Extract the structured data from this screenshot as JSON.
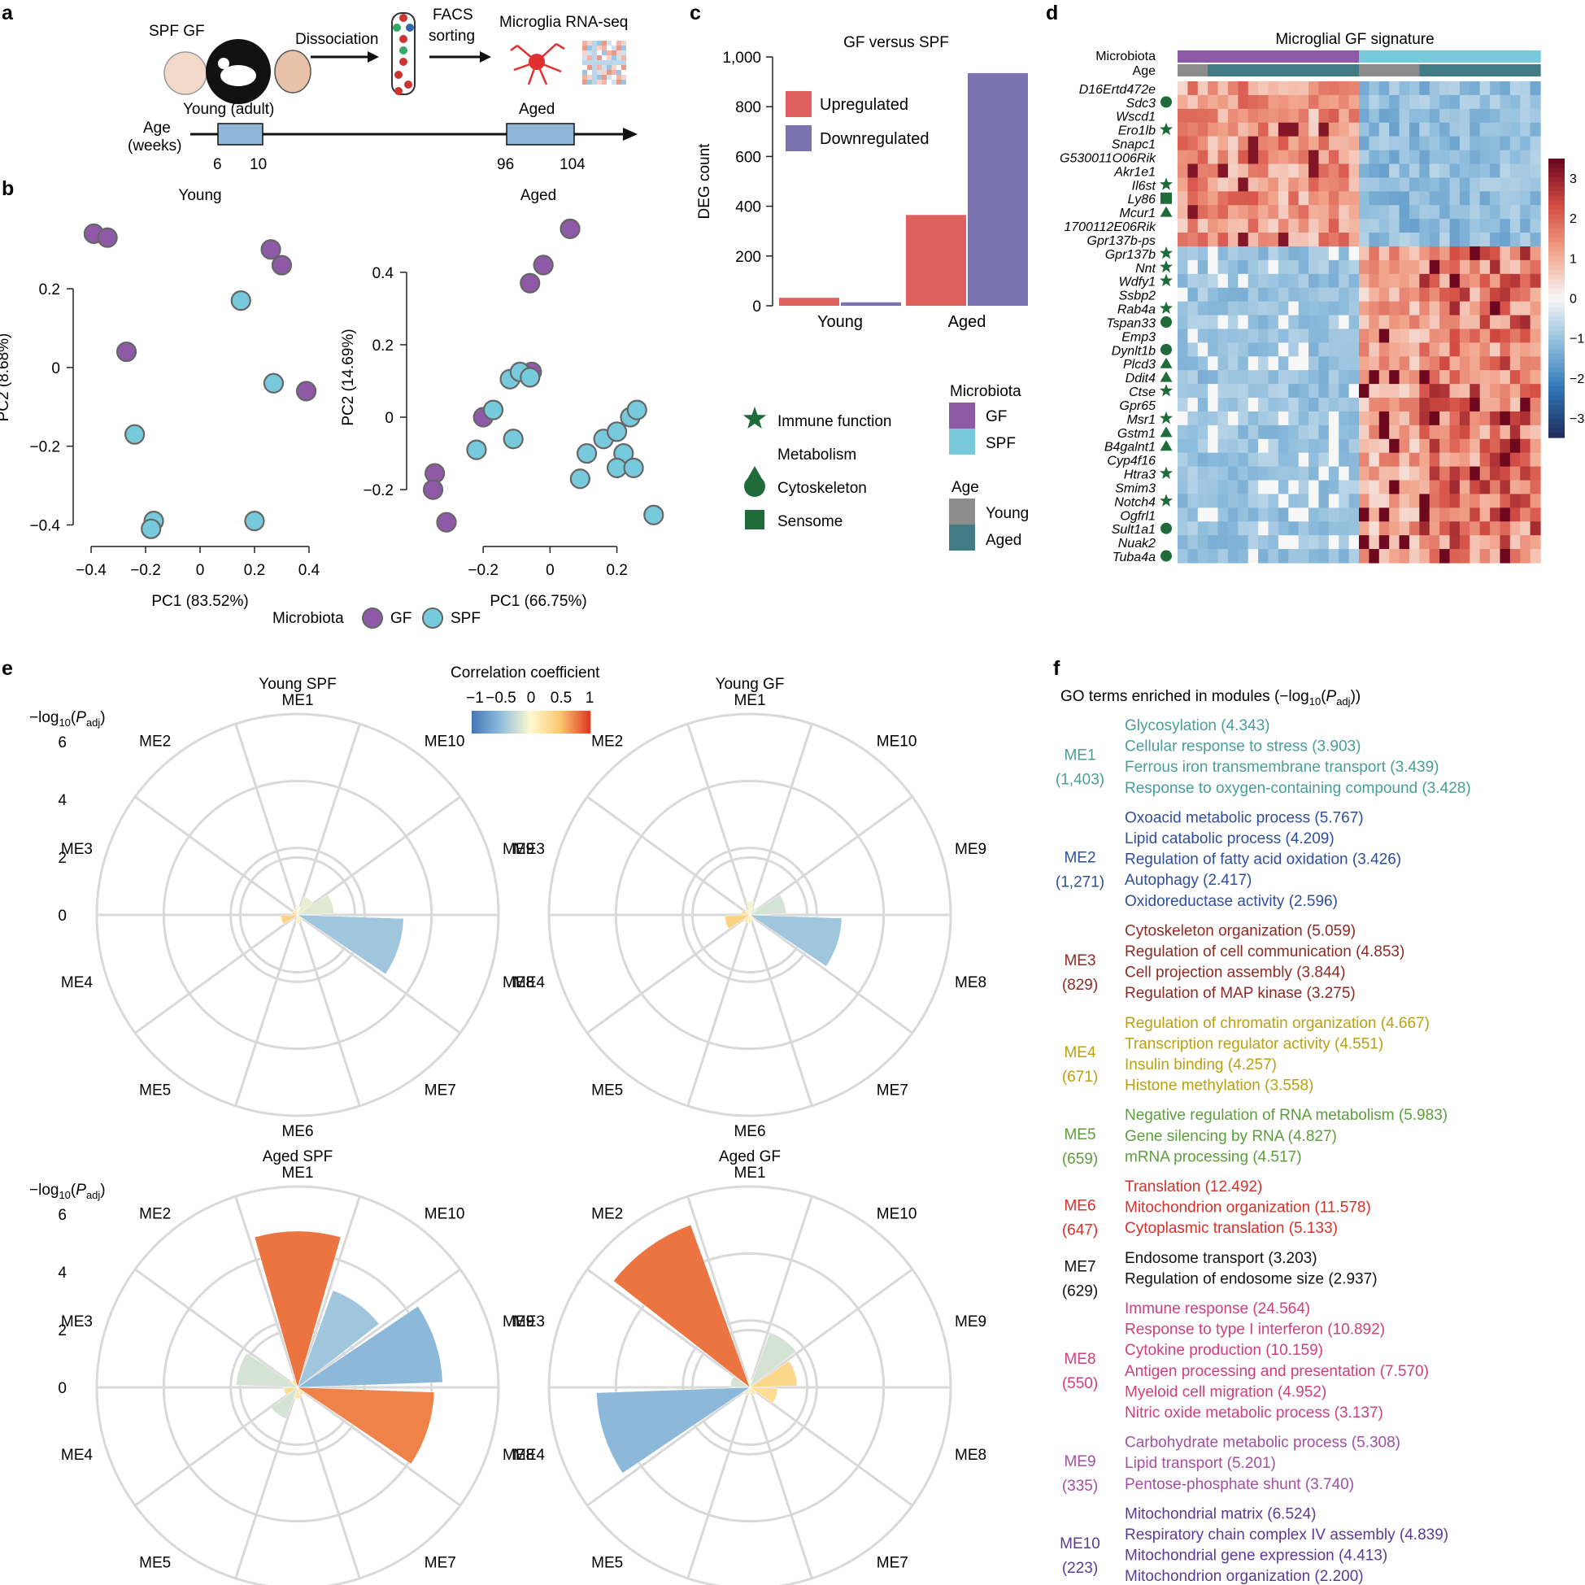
{
  "panel_letters": [
    "a",
    "b",
    "c",
    "d",
    "e",
    "f"
  ],
  "panel_a": {
    "strains": "SPF GF",
    "step1": "Dissociation",
    "step2_line1": "FACS",
    "step2_line2": "sorting",
    "step3": "Microglia RNA-seq",
    "young_label": "Young (adult)",
    "aged_label": "Aged",
    "age_axis_line1": "Age",
    "age_axis_line2": "(weeks)",
    "ticks": [
      "6",
      "10",
      "96",
      "104"
    ],
    "colors": {
      "bar": "#8fb5d8",
      "mouse": "#111111",
      "cell": "#e03030"
    }
  },
  "legend_b": {
    "title": "Microbiota",
    "gf": "GF",
    "spf": "SPF"
  },
  "legend_c": {
    "categories_title": "",
    "immune": "Immune function",
    "metabolism": "Metabolism",
    "cytoskeleton": "Cytoskeleton",
    "sensome": "Sensome",
    "microbiota_title": "Microbiota",
    "gf": "GF",
    "spf": "SPF",
    "age_title": "Age",
    "young": "Young",
    "aged": "Aged"
  },
  "colors": {
    "gf": "#8e5aa8",
    "spf": "#77cadc",
    "young": "#8c8c8c",
    "aged": "#427d87",
    "up": "#e06060",
    "down": "#7b72b0",
    "category_marker": "#1f6b3a",
    "up_petal": "#ec8150",
    "down_petal": "#8dbcdd"
  },
  "chart_data": [
    {
      "id": "b_young",
      "type": "scatter",
      "title": "Young",
      "xlabel": "PC1 (83.52%)",
      "ylabel": "PC2 (8.68%)",
      "xlim": [
        -0.43,
        0.43
      ],
      "ylim": [
        -0.43,
        0.38
      ],
      "xticks": [
        -0.4,
        -0.2,
        0,
        0.2,
        0.4
      ],
      "xtick_labels": [
        "−0.4",
        "−0.2",
        "0",
        "0.2",
        "0.4"
      ],
      "yticks": [
        -0.4,
        -0.2,
        0,
        0.2
      ],
      "ytick_labels": [
        "−0.4",
        "−0.2",
        "0",
        "0.2"
      ],
      "series": [
        {
          "name": "GF",
          "points": [
            [
              -0.39,
              0.34
            ],
            [
              -0.34,
              0.33
            ],
            [
              -0.27,
              0.04
            ],
            [
              0.26,
              0.3
            ],
            [
              0.3,
              0.26
            ],
            [
              0.39,
              -0.06
            ]
          ]
        },
        {
          "name": "SPF",
          "points": [
            [
              0.15,
              0.17
            ],
            [
              -0.24,
              -0.17
            ],
            [
              0.27,
              -0.04
            ],
            [
              -0.17,
              -0.39
            ],
            [
              -0.18,
              -0.41
            ],
            [
              0.2,
              -0.39
            ]
          ]
        }
      ]
    },
    {
      "id": "b_aged",
      "type": "scatter",
      "title": "Aged",
      "xlabel": "PC1 (66.75%)",
      "ylabel": "PC2 (14.69%)",
      "xlim": [
        -0.4,
        0.33
      ],
      "ylim": [
        -0.33,
        0.55
      ],
      "xticks": [
        -0.2,
        0,
        0.2
      ],
      "xtick_labels": [
        "−0.2",
        "0",
        "0.2"
      ],
      "yticks": [
        -0.2,
        0,
        0.2,
        0.4
      ],
      "ytick_labels": [
        "−0.2",
        "0",
        "0.2",
        "0.4"
      ],
      "series": [
        {
          "name": "GF",
          "points": [
            [
              0.06,
              0.52
            ],
            [
              -0.02,
              0.42
            ],
            [
              -0.06,
              0.37
            ],
            [
              -0.055,
              0.125
            ],
            [
              -0.2,
              0.0
            ],
            [
              -0.345,
              -0.155
            ],
            [
              -0.35,
              -0.2
            ],
            [
              -0.31,
              -0.29
            ]
          ]
        },
        {
          "name": "SPF",
          "points": [
            [
              -0.12,
              0.105
            ],
            [
              -0.09,
              0.125
            ],
            [
              -0.06,
              0.11
            ],
            [
              -0.17,
              0.02
            ],
            [
              -0.22,
              -0.09
            ],
            [
              -0.11,
              -0.06
            ],
            [
              0.11,
              -0.1
            ],
            [
              0.09,
              -0.17
            ],
            [
              0.16,
              -0.06
            ],
            [
              0.2,
              -0.04
            ],
            [
              0.24,
              0.0
            ],
            [
              0.26,
              0.02
            ],
            [
              0.22,
              -0.1
            ],
            [
              0.2,
              -0.14
            ],
            [
              0.25,
              -0.14
            ],
            [
              0.31,
              -0.27
            ]
          ]
        }
      ]
    },
    {
      "id": "c",
      "type": "bar",
      "title": "GF versus SPF",
      "categories": [
        "Young",
        "Aged"
      ],
      "ylabel": "DEG count",
      "ylim": [
        0,
        1000
      ],
      "yticks": [
        0,
        200,
        400,
        600,
        800,
        1000
      ],
      "ytick_labels": [
        "0",
        "200",
        "400",
        "600",
        "800",
        "1,000"
      ],
      "series": [
        {
          "name": "Upregulated",
          "values": [
            32,
            365
          ]
        },
        {
          "name": "Downregulated",
          "values": [
            14,
            935
          ]
        }
      ]
    },
    {
      "id": "d",
      "type": "heatmap",
      "title": "Microglial GF signature",
      "annotation_rows": [
        "Microbiota",
        "Age"
      ],
      "column_microbiota": [
        "GF",
        "GF",
        "GF",
        "GF",
        "GF",
        "GF",
        "GF",
        "GF",
        "GF",
        "GF",
        "GF",
        "GF",
        "GF",
        "GF",
        "GF",
        "GF",
        "GF",
        "GF",
        "SPF",
        "SPF",
        "SPF",
        "SPF",
        "SPF",
        "SPF",
        "SPF",
        "SPF",
        "SPF",
        "SPF",
        "SPF",
        "SPF",
        "SPF",
        "SPF",
        "SPF",
        "SPF",
        "SPF",
        "SPF"
      ],
      "column_age": [
        "Young",
        "Young",
        "Young",
        "Aged",
        "Aged",
        "Aged",
        "Aged",
        "Aged",
        "Aged",
        "Aged",
        "Aged",
        "Aged",
        "Aged",
        "Aged",
        "Aged",
        "Aged",
        "Aged",
        "Aged",
        "Young",
        "Young",
        "Young",
        "Young",
        "Young",
        "Young",
        "Aged",
        "Aged",
        "Aged",
        "Aged",
        "Aged",
        "Aged",
        "Aged",
        "Aged",
        "Aged",
        "Aged",
        "Aged",
        "Aged"
      ],
      "genes": [
        "D16Ertd472e",
        "Sdc3",
        "Wscd1",
        "Ero1lb",
        "Snapc1",
        "G530011O06Rik",
        "Akr1e1",
        "Il6st",
        "Ly86",
        "Mcur1",
        "1700112E06Rik",
        "Gpr137b-ps",
        "Gpr137b",
        "Nnt",
        "Wdfy1",
        "Ssbp2",
        "Rab4a",
        "Tspan33",
        "Emp3",
        "Dynlt1b",
        "Plcd3",
        "Ddit4",
        "Ctse",
        "Gpr65",
        "Msr1",
        "Gstm1",
        "B4galnt1",
        "Cyp4f16",
        "Htra3",
        "Smim3",
        "Notch4",
        "Ogfrl1",
        "Sult1a1",
        "Nuak2",
        "Tuba4a"
      ],
      "gene_markers": [
        "",
        "circle",
        "",
        "star",
        "",
        "",
        "",
        "star",
        "square",
        "triangle",
        "",
        "",
        "star",
        "star",
        "star",
        "",
        "star",
        "circle",
        "",
        "circle",
        "triangle",
        "triangle",
        "star",
        "",
        "star",
        "triangle",
        "triangle",
        "",
        "star",
        "",
        "star",
        "",
        "circle",
        "",
        "circle"
      ],
      "colorbar_ticks": [
        "3",
        "2",
        "1",
        "0",
        "−1",
        "−2",
        "−3"
      ],
      "colorbar_range": [
        -3,
        3
      ],
      "values_description": "z-score; values estimated per gene from cell shading"
    },
    {
      "id": "e",
      "type": "rose",
      "modules": [
        "ME1",
        "ME10",
        "ME9",
        "ME8",
        "ME7",
        "ME6",
        "ME5",
        "ME4",
        "ME3",
        "ME2"
      ],
      "rlabel": "−log10(Padj)",
      "rticks": [
        "0",
        "2",
        "4",
        "6"
      ],
      "rmax": 7.2,
      "colorbar_title": "Correlation coefficient",
      "colorbar_ticks": [
        "−1",
        "−0.5",
        "0",
        "0.5",
        "1"
      ],
      "panels": [
        {
          "title": "Young SPF",
          "values": [
            0.3,
            0.7,
            1.3,
            3.8,
            0.2,
            0.3,
            0.1,
            0.6,
            0.2,
            0.2
          ],
          "corr": [
            0.0,
            -0.1,
            -0.15,
            -0.45,
            0.1,
            0.1,
            0.15,
            0.4,
            0.35,
            0.2
          ]
        },
        {
          "title": "Young GF",
          "values": [
            0.5,
            0.3,
            1.3,
            3.3,
            0.2,
            0.3,
            0.3,
            0.9,
            0.3,
            0.2
          ],
          "corr": [
            -0.05,
            -0.1,
            -0.2,
            -0.45,
            0.1,
            0.1,
            0.15,
            0.4,
            0.3,
            0.1
          ]
        },
        {
          "title": "Aged SPF",
          "values": [
            5.6,
            3.7,
            5.2,
            4.9,
            0.3,
            0.4,
            1.2,
            0.5,
            2.2,
            0.3
          ],
          "corr": [
            0.8,
            -0.45,
            -0.55,
            0.75,
            0.2,
            0.2,
            -0.2,
            0.3,
            -0.2,
            0.2
          ]
        },
        {
          "title": "Aged GF",
          "values": [
            0.3,
            2.1,
            1.7,
            1.0,
            0.3,
            0.2,
            0.3,
            5.5,
            0.7,
            6.2
          ],
          "corr": [
            0.0,
            -0.2,
            0.35,
            0.3,
            0.2,
            0.2,
            -0.1,
            -0.55,
            -0.2,
            0.8
          ]
        }
      ]
    }
  ],
  "panel_f": {
    "title": "GO terms enriched in modules (−log10(Padj))",
    "modules": [
      {
        "name": "ME1",
        "count": "(1,403)",
        "color": "#4a9e97",
        "terms": [
          "Glycosylation (4.343)",
          "Cellular response to stress (3.903)",
          "Ferrous iron transmembrane transport (3.439)",
          "Response to oxygen-containing compound (3.428)"
        ]
      },
      {
        "name": "ME2",
        "count": "(1,271)",
        "color": "#2f4e9e",
        "terms": [
          "Oxoacid metabolic process (5.767)",
          "Lipid catabolic process (4.209)",
          "Regulation of fatty acid oxidation (3.426)",
          "Autophagy (2.417)",
          "Oxidoreductase activity (2.596)"
        ]
      },
      {
        "name": "ME3",
        "count": "(829)",
        "color": "#8e2a24",
        "terms": [
          "Cytoskeleton organization (5.059)",
          "Regulation of cell communication (4.853)",
          "Cell projection assembly (3.844)",
          "Regulation of MAP kinase (3.275)"
        ]
      },
      {
        "name": "ME4",
        "count": "(671)",
        "color": "#b9a10f",
        "terms": [
          "Regulation of chromatin organization (4.667)",
          "Transcription regulator activity (4.551)",
          "Insulin binding (4.257)",
          "Histone methylation (3.558)"
        ]
      },
      {
        "name": "ME5",
        "count": "(659)",
        "color": "#5c9e3c",
        "terms": [
          "Negative regulation of RNA metabolism (5.983)",
          "Gene silencing by RNA (4.827)",
          "mRNA processing (4.517)"
        ]
      },
      {
        "name": "ME6",
        "count": "(647)",
        "color": "#d8312c",
        "terms": [
          "Translation (12.492)",
          "Mitochondrion organization (11.578)",
          "Cytoplasmic translation (5.133)"
        ]
      },
      {
        "name": "ME7",
        "count": "(629)",
        "color": "#111111",
        "terms": [
          "Endosome transport (3.203)",
          "Regulation of endosome size (2.937)"
        ]
      },
      {
        "name": "ME8",
        "count": "(550)",
        "color": "#cf3f7c",
        "terms": [
          "Immune response (24.564)",
          "Response to type I interferon (10.892)",
          "Cytokine production (10.159)",
          "Antigen processing and presentation (7.570)",
          "Myeloid cell migration (4.952)",
          "Nitric oxide metabolic process (3.137)"
        ]
      },
      {
        "name": "ME9",
        "count": "(335)",
        "color": "#a44ea4",
        "terms": [
          "Carbohydrate metabolic process (5.308)",
          "Lipid transport (5.201)",
          "Pentose-phosphate shunt (3.740)"
        ]
      },
      {
        "name": "ME10",
        "count": "(223)",
        "color": "#5c3a96",
        "terms": [
          "Mitochondrial matrix (6.524)",
          "Respiratory chain complex IV assembly (4.839)",
          "Mitochondrial gene expression (4.413)",
          "Mitochondrion organization (2.200)"
        ]
      }
    ]
  }
}
